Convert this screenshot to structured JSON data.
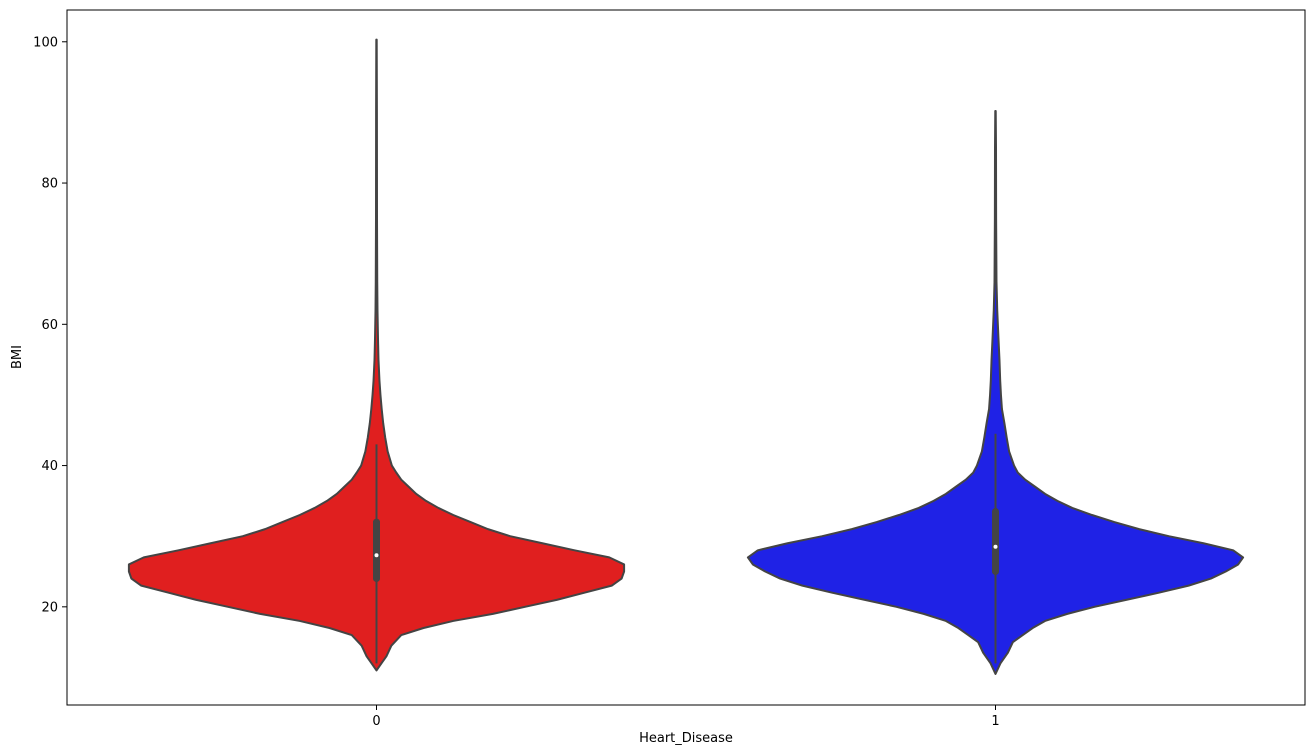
{
  "chart_data": {
    "type": "violin",
    "title": "",
    "xlabel": "Heart_Disease",
    "ylabel": "BMI",
    "categories": [
      "0",
      "1"
    ],
    "ylim": [
      6.1,
      104.5
    ],
    "yticks": [
      20,
      40,
      60,
      80,
      100
    ],
    "grid": false,
    "legend": "none",
    "outline_color": "#444444",
    "violins": [
      {
        "category": "0",
        "color": "#e01f1f",
        "median": 27.3,
        "q1": 24.0,
        "q3": 32.0,
        "whisker_low": 12.0,
        "whisker_high": 43.0,
        "min": 11.0,
        "max": 100.3,
        "profile": [
          [
            11.0,
            0.0
          ],
          [
            12.0,
            0.02
          ],
          [
            13.0,
            0.04
          ],
          [
            14.5,
            0.06
          ],
          [
            16.0,
            0.1
          ],
          [
            17.0,
            0.19
          ],
          [
            18.0,
            0.31
          ],
          [
            19.0,
            0.47
          ],
          [
            20.0,
            0.6
          ],
          [
            21.0,
            0.73
          ],
          [
            22.0,
            0.84
          ],
          [
            23.0,
            0.95
          ],
          [
            24.0,
            0.99
          ],
          [
            25.0,
            1.0
          ],
          [
            26.0,
            1.0
          ],
          [
            27.0,
            0.94
          ],
          [
            28.0,
            0.8
          ],
          [
            29.0,
            0.67
          ],
          [
            30.0,
            0.54
          ],
          [
            31.0,
            0.45
          ],
          [
            32.0,
            0.38
          ],
          [
            33.0,
            0.31
          ],
          [
            34.0,
            0.25
          ],
          [
            35.0,
            0.2
          ],
          [
            36.0,
            0.16
          ],
          [
            37.0,
            0.13
          ],
          [
            38.0,
            0.1
          ],
          [
            39.0,
            0.08
          ],
          [
            40.0,
            0.062
          ],
          [
            42.0,
            0.045
          ],
          [
            44.0,
            0.035
          ],
          [
            46.0,
            0.027
          ],
          [
            48.0,
            0.021
          ],
          [
            50.0,
            0.016
          ],
          [
            52.0,
            0.012
          ],
          [
            55.0,
            0.008
          ],
          [
            58.0,
            0.006
          ],
          [
            62.0,
            0.004
          ],
          [
            66.0,
            0.003
          ],
          [
            75.0,
            0.002
          ],
          [
            90.0,
            0.0016
          ],
          [
            100.3,
            0.0008
          ]
        ]
      },
      {
        "category": "1",
        "color": "#1f22e6",
        "median": 28.5,
        "q1": 25.0,
        "q3": 33.5,
        "whisker_low": 12.0,
        "whisker_high": 44.5,
        "min": 10.5,
        "max": 90.2,
        "profile": [
          [
            10.5,
            0.0
          ],
          [
            12.0,
            0.02
          ],
          [
            13.5,
            0.05
          ],
          [
            15.0,
            0.07
          ],
          [
            16.0,
            0.11
          ],
          [
            17.0,
            0.15
          ],
          [
            18.0,
            0.2
          ],
          [
            19.0,
            0.29
          ],
          [
            20.0,
            0.4
          ],
          [
            21.0,
            0.53
          ],
          [
            22.0,
            0.66
          ],
          [
            23.0,
            0.78
          ],
          [
            24.0,
            0.87
          ],
          [
            25.0,
            0.93
          ],
          [
            26.0,
            0.98
          ],
          [
            27.0,
            1.0
          ],
          [
            28.0,
            0.96
          ],
          [
            29.0,
            0.84
          ],
          [
            30.0,
            0.7
          ],
          [
            31.0,
            0.58
          ],
          [
            32.0,
            0.48
          ],
          [
            33.0,
            0.39
          ],
          [
            34.0,
            0.31
          ],
          [
            35.0,
            0.25
          ],
          [
            36.0,
            0.2
          ],
          [
            37.0,
            0.16
          ],
          [
            38.0,
            0.12
          ],
          [
            39.0,
            0.09
          ],
          [
            40.0,
            0.075
          ],
          [
            42.0,
            0.055
          ],
          [
            44.0,
            0.045
          ],
          [
            46.0,
            0.036
          ],
          [
            48.0,
            0.026
          ],
          [
            50.0,
            0.022
          ],
          [
            52.0,
            0.019
          ],
          [
            55.0,
            0.016
          ],
          [
            58.0,
            0.012
          ],
          [
            62.0,
            0.007
          ],
          [
            66.0,
            0.004
          ],
          [
            75.0,
            0.0025
          ],
          [
            85.0,
            0.002
          ],
          [
            90.2,
            0.0009
          ]
        ]
      }
    ]
  }
}
